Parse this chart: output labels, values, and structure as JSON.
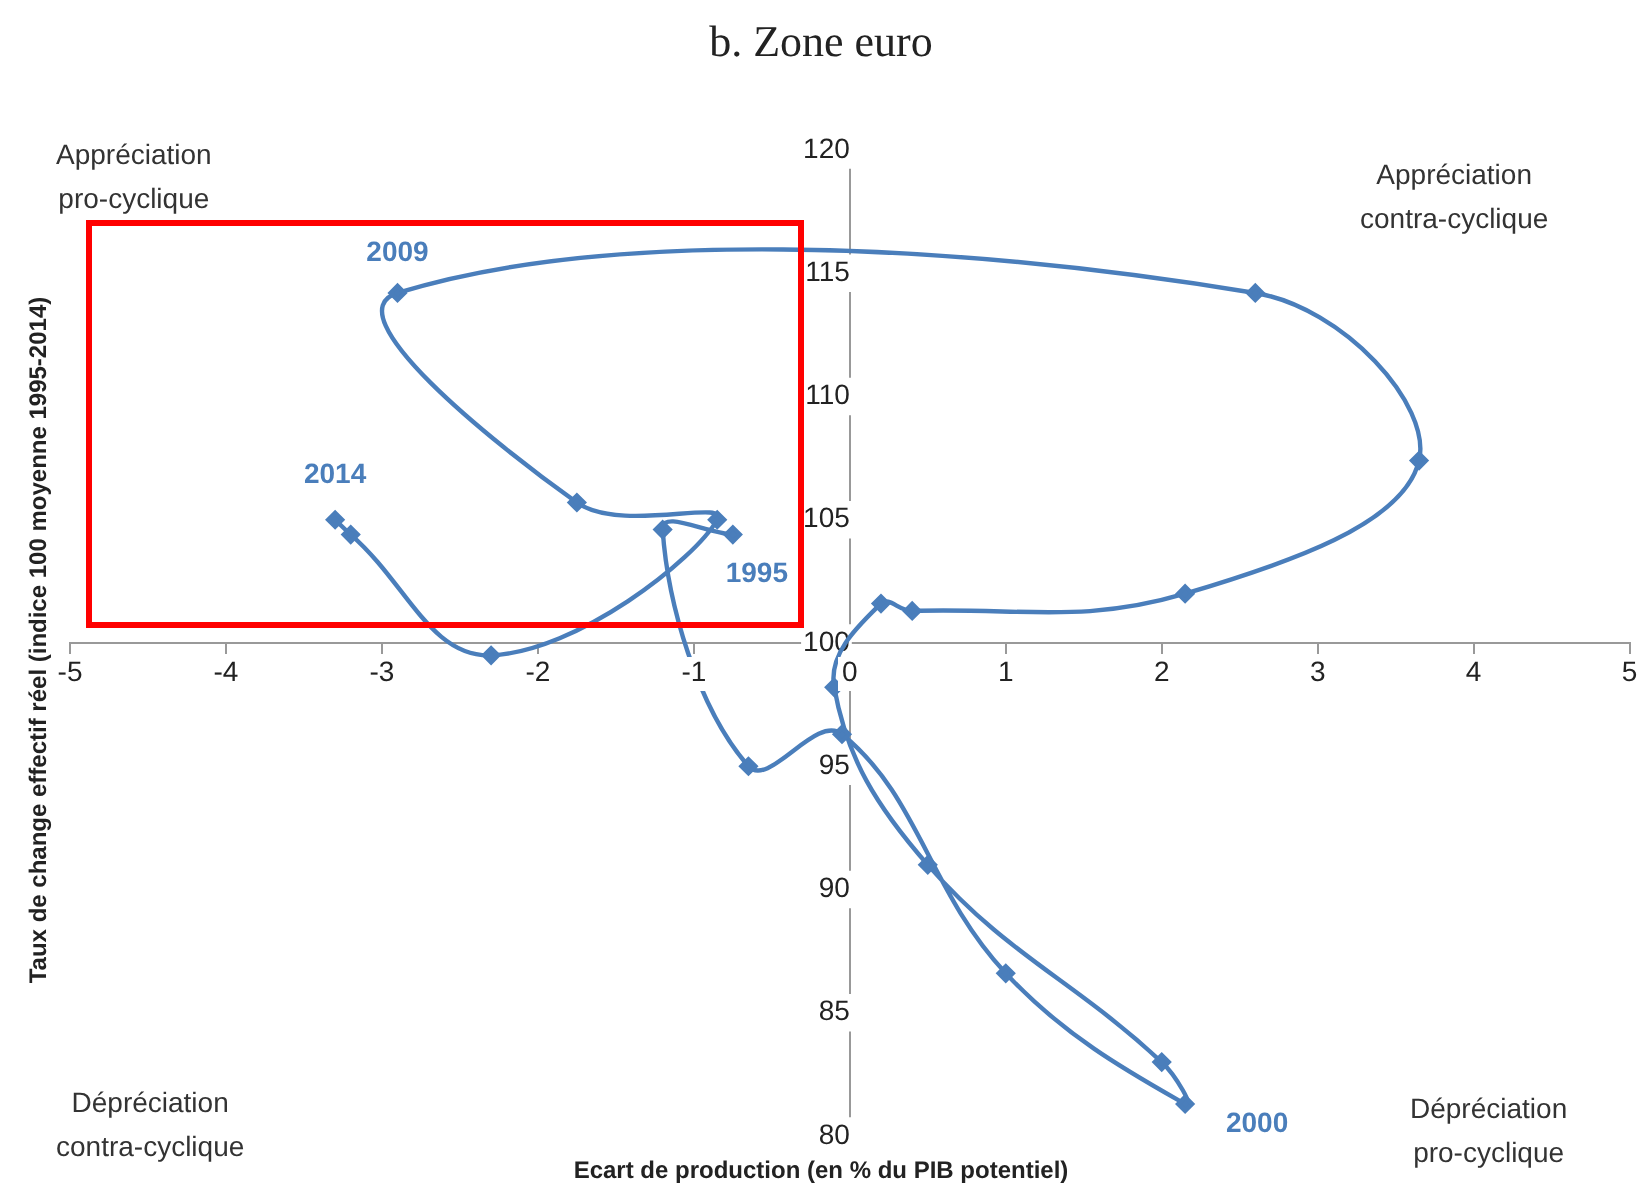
{
  "chart_data": {
    "type": "line",
    "title": "b. Zone euro",
    "xlabel": "Ecart de production (en % du PIB potentiel)",
    "ylabel": "Taux de change effectif réel (indice 100 moyenne 1995-2014)",
    "series": [
      {
        "color": "#4a7ebb",
        "x": [
          -0.75,
          -1.2,
          -0.65,
          -0.05,
          1,
          2.15,
          2,
          0.5,
          -0.1,
          0.2,
          0.4,
          2.15,
          3.65,
          2.6,
          -2.9,
          -1.75,
          -0.85,
          -2.3,
          -3.2,
          -3.3
        ],
        "values": [
          104.4,
          104.6,
          95,
          96.3,
          86.6,
          81.3,
          83,
          91,
          98.2,
          101.6,
          101.3,
          102,
          107.4,
          114.2,
          114.2,
          105.7,
          105,
          99.5,
          104.4,
          105
        ]
      }
    ],
    "xlim": [
      -5,
      5
    ],
    "xticks": [
      -5,
      -4,
      -3,
      -2,
      -1,
      0,
      1,
      2,
      3,
      4,
      5
    ],
    "ylim": [
      80,
      120
    ],
    "yticks": [
      80,
      85,
      90,
      95,
      100,
      105,
      110,
      115,
      120
    ],
    "grid": false,
    "legend": false,
    "marker": "diamond",
    "line_style": "solid",
    "annotations": [
      "Appréciation\npro-cyclique",
      "Appréciation\ncontra-cyclique",
      "Dépréciation\ncontra-cyclique",
      "Dépréciation\npro-cyclique",
      {
        "text": "1995",
        "x": -0.75,
        "y": 104.4
      },
      {
        "text": "2000",
        "x": 2.15,
        "y": 81.3
      },
      {
        "text": "2009",
        "x": -2.9,
        "y": 114.2
      },
      {
        "text": "2014",
        "x": -3.3,
        "y": 105
      }
    ]
  }
}
